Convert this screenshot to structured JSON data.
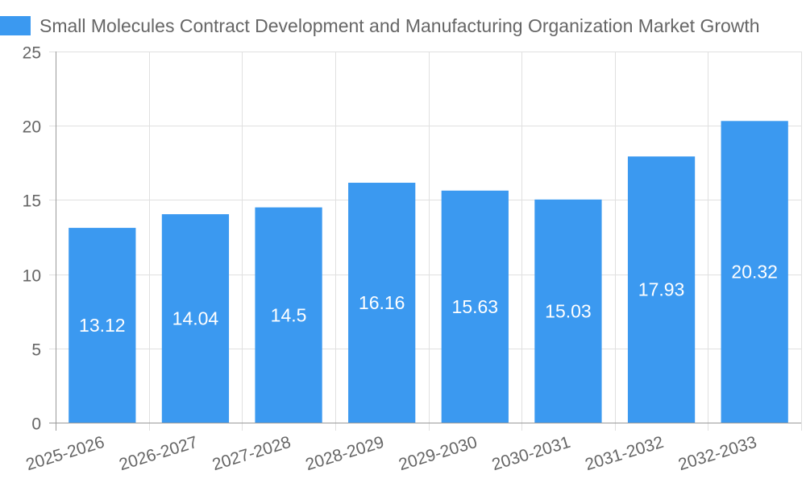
{
  "chart_data": {
    "type": "bar",
    "categories": [
      "2025-2026",
      "2026-2027",
      "2027-2028",
      "2028-2029",
      "2029-2030",
      "2030-2031",
      "2031-2032",
      "2032-2033"
    ],
    "series": [
      {
        "name": "Small Molecules Contract Development and Manufacturing Organization Market Growth",
        "values": [
          13.12,
          14.04,
          14.5,
          16.16,
          15.63,
          15.03,
          17.93,
          20.32
        ],
        "value_labels": [
          "13.12",
          "14.04",
          "14.5",
          "16.16",
          "15.63",
          "15.03",
          "17.93",
          "20.32"
        ]
      }
    ],
    "ylim": [
      0,
      25
    ],
    "yticks": [
      "0",
      "5",
      "10",
      "15",
      "20",
      "25"
    ],
    "grid": true,
    "legend_position": "top",
    "colors": {
      "bar": "#3b99f0",
      "grid": "#e0e0e0",
      "axis": "#999999",
      "tick_text": "#666666",
      "value_text": "#ffffff"
    }
  }
}
